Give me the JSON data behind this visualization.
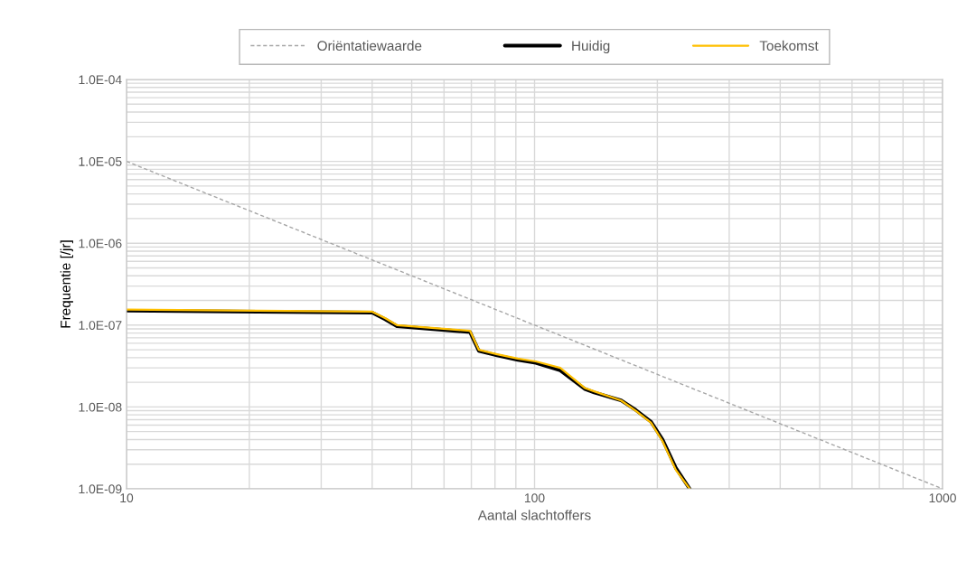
{
  "chart_data": {
    "type": "line",
    "xlabel": "Aantal slachtoffers",
    "ylabel": "Frequentie [/jr]",
    "log": "xy",
    "grid": true,
    "legend": "top",
    "xlim": [
      10,
      1000
    ],
    "xticks": [
      10,
      100,
      1000
    ],
    "ylim": [
      1e-09,
      0.0001
    ],
    "yticks": [
      {
        "value": 1e-09,
        "label": "1.0E-09"
      },
      {
        "value": 1e-08,
        "label": "1.0E-08"
      },
      {
        "value": 1e-07,
        "label": "1.0E-07"
      },
      {
        "value": 1e-06,
        "label": "1.0E-06"
      },
      {
        "value": 1e-05,
        "label": "1.0E-05"
      },
      {
        "value": 0.0001,
        "label": "1.0E-04"
      }
    ],
    "series": [
      {
        "name": "Oriëntatiewaarde",
        "color": "#a6a6a6",
        "line_style": "dashed",
        "x": [
          10,
          1000
        ],
        "values": [
          1e-05,
          1e-09
        ]
      },
      {
        "name": "Huidig",
        "color": "#000000",
        "line_style": "solid",
        "x": [
          10,
          40,
          43,
          46,
          69.5,
          73,
          81,
          91,
          100.7,
          115.6,
          133,
          140,
          163,
          177,
          193,
          206,
          222,
          240
        ],
        "values": [
          1.5e-07,
          1.42e-07,
          1.18e-07,
          9.7e-08,
          8.2e-08,
          4.85e-08,
          4.25e-08,
          3.75e-08,
          3.45e-08,
          2.8e-08,
          1.65e-08,
          1.5e-08,
          1.2e-08,
          9.2e-09,
          6.6e-09,
          4e-09,
          1.8e-09,
          1e-09
        ]
      },
      {
        "name": "Toekomst",
        "color": "#ffc000",
        "line_style": "solid",
        "x": [
          10,
          40,
          43,
          46,
          69.5,
          73,
          81,
          91,
          100.7,
          115.6,
          133,
          140,
          163,
          177,
          193,
          206,
          222,
          240
        ],
        "values": [
          1.55e-07,
          1.46e-07,
          1.22e-07,
          1e-07,
          8.5e-08,
          5e-08,
          4.4e-08,
          3.9e-08,
          3.6e-08,
          3e-08,
          1.7e-08,
          1.55e-08,
          1.2e-08,
          9e-09,
          6.4e-09,
          3.8e-09,
          1.7e-09,
          1e-09
        ]
      }
    ]
  }
}
